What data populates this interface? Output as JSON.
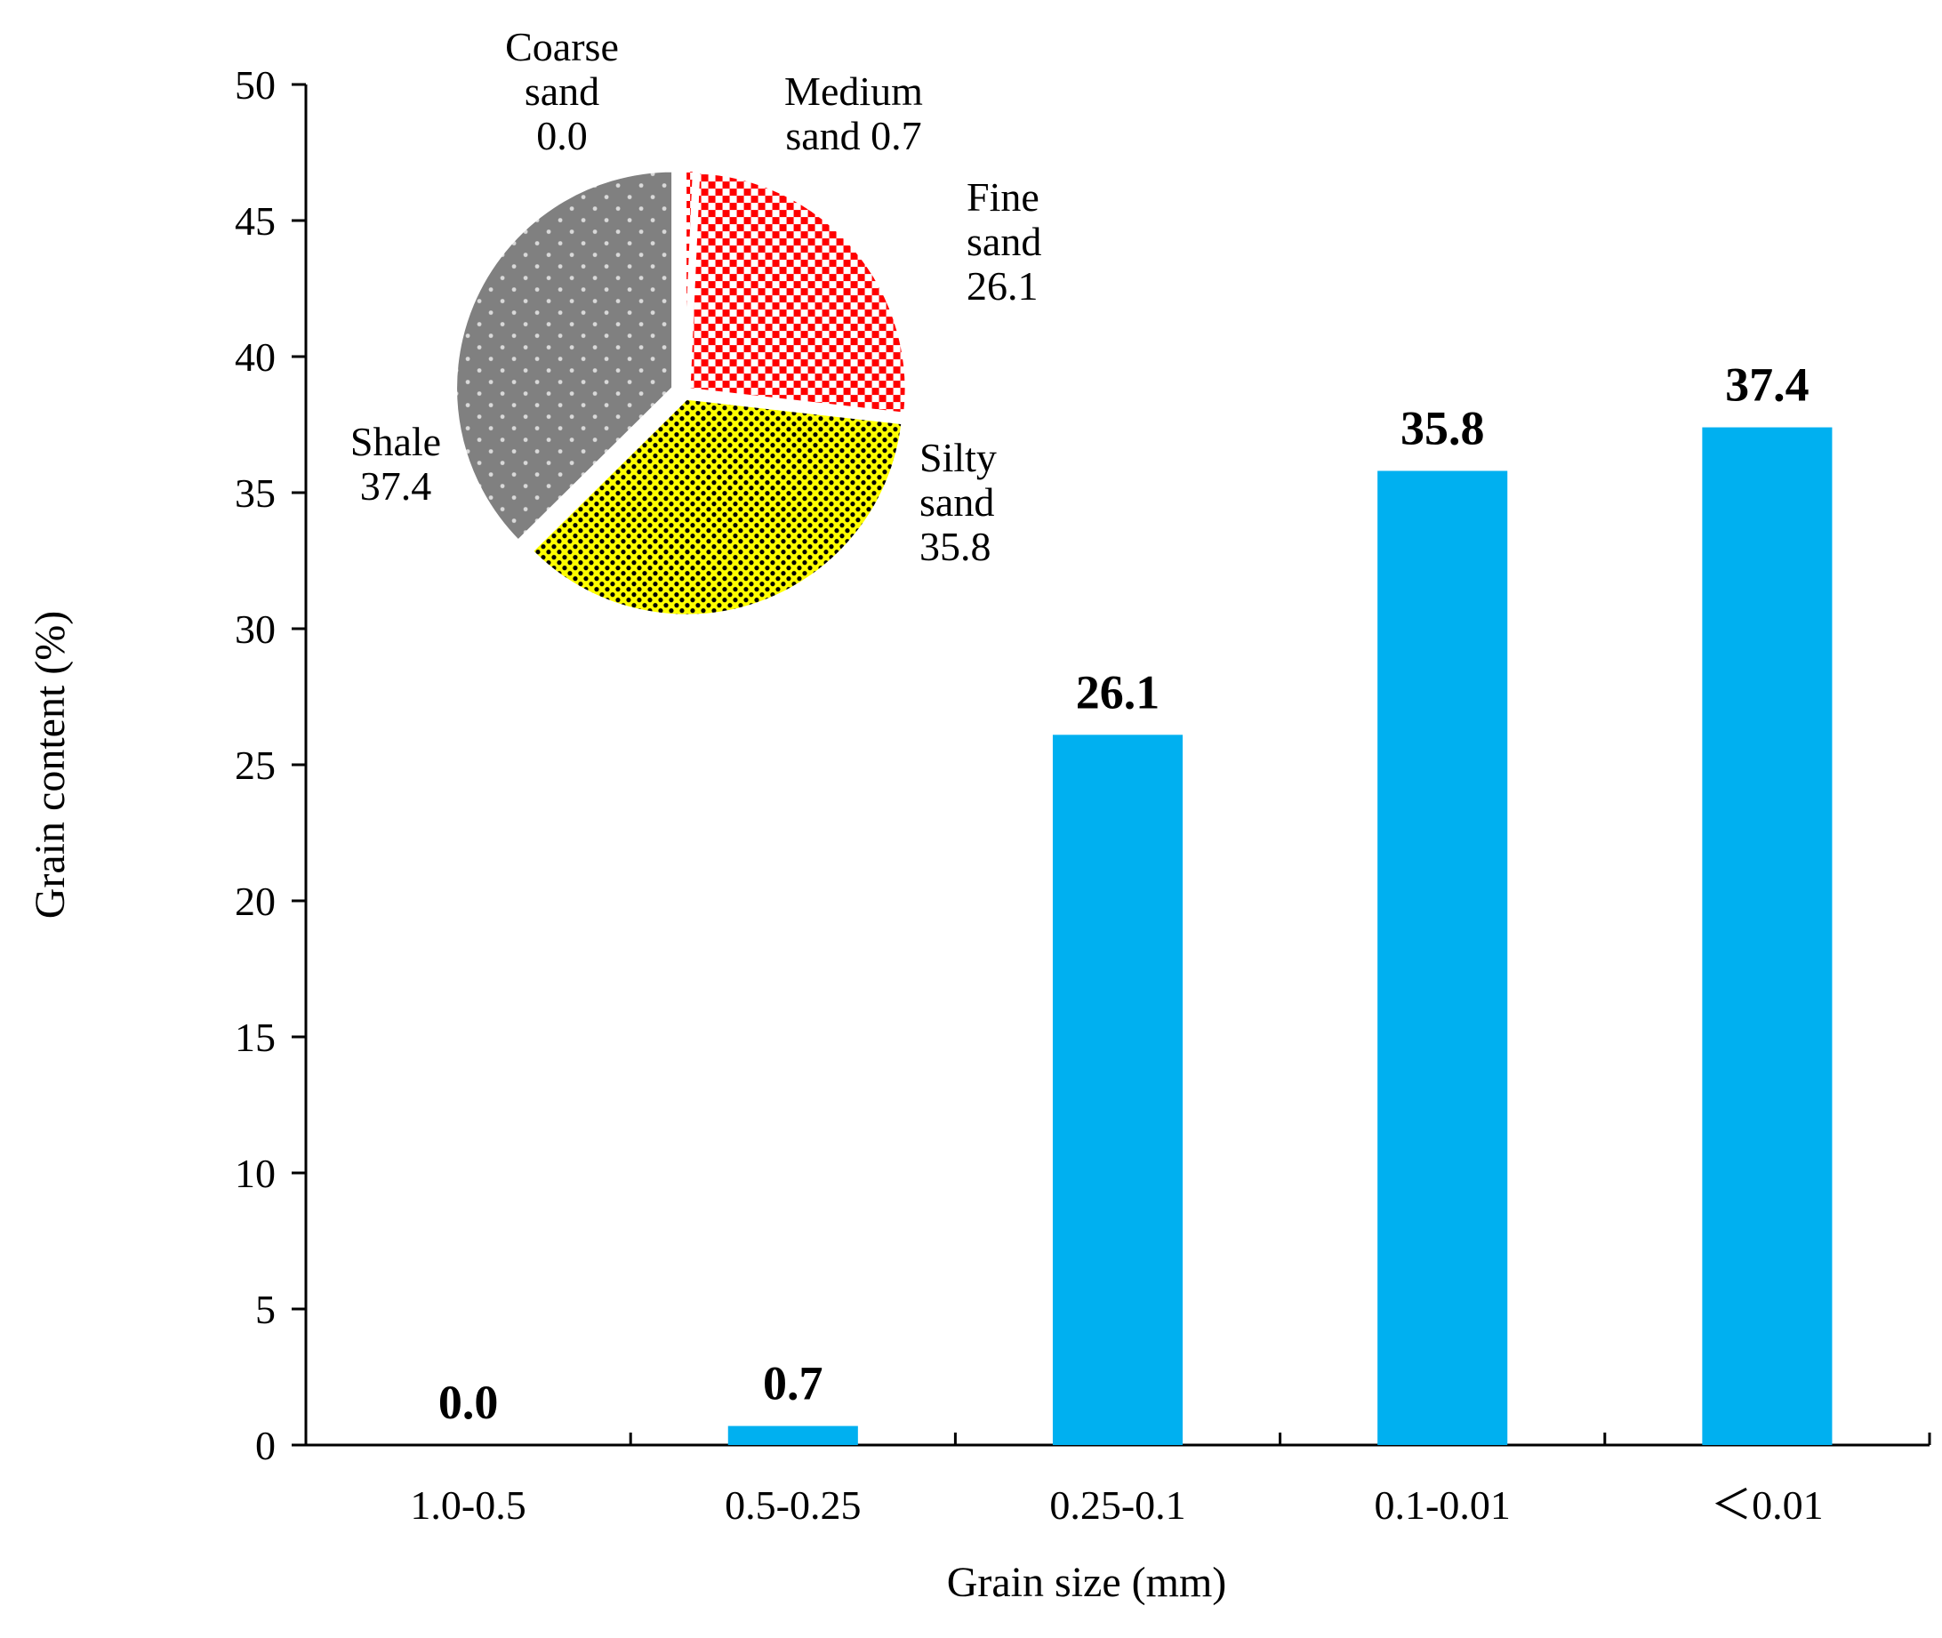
{
  "chart_data": [
    {
      "type": "bar",
      "title": "",
      "xlabel": "Grain size (mm)",
      "ylabel": "Grain content (%)",
      "ylim": [
        0,
        50
      ],
      "yticks": [
        "0",
        "5",
        "10",
        "15",
        "20",
        "25",
        "30",
        "35",
        "40",
        "45",
        "50"
      ],
      "categories": [
        "1.0-0.5",
        "0.5-0.25",
        "0.25-0.1",
        "0.1-0.01",
        "＜0.01"
      ],
      "values": [
        0.0,
        0.7,
        26.1,
        35.8,
        37.4
      ],
      "value_labels": [
        "0.0",
        "0.7",
        "26.1",
        "35.8",
        "37.4"
      ],
      "bar_color": "#00b0f0",
      "grid": false
    },
    {
      "type": "pie",
      "slices": [
        {
          "name_lines": [
            "Coarse",
            "sand"
          ],
          "label_lines": [
            "Coarse",
            "sand",
            "0.0"
          ],
          "value": 0.0,
          "pattern": "gray-dots"
        },
        {
          "name_lines": [
            "Medium"
          ],
          "label_lines": [
            "Medium",
            "sand 0.7"
          ],
          "value": 0.7,
          "pattern": "red-check"
        },
        {
          "name_lines": [
            "Fine",
            "sand"
          ],
          "label_lines": [
            "Fine",
            "sand",
            "26.1"
          ],
          "value": 26.1,
          "pattern": "red-check"
        },
        {
          "name_lines": [
            "Silty",
            "sand"
          ],
          "label_lines": [
            "Silty",
            "sand",
            "35.8"
          ],
          "value": 35.8,
          "pattern": "yellow-dots"
        },
        {
          "name_lines": [
            "Shale"
          ],
          "label_lines": [
            "Shale",
            "37.4"
          ],
          "value": 37.4,
          "pattern": "gray-dots"
        }
      ],
      "colors": {
        "red": "#ff0000",
        "yellow": "#ffff00",
        "gray": "#808080",
        "white": "#ffffff",
        "black": "#000000"
      }
    }
  ]
}
